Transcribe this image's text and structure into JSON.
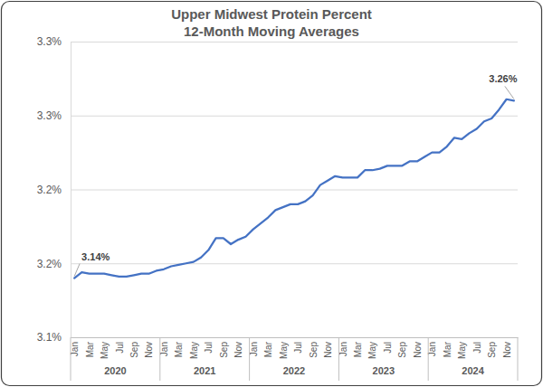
{
  "chart_data": {
    "type": "line",
    "title": "Upper Midwest Protein Percent",
    "subtitle": "12-Month Moving Averages",
    "categories": [
      "Jan",
      null,
      "Mar",
      null,
      "May",
      null,
      "Jul",
      null,
      "Sep",
      null,
      "Nov",
      null,
      "Jan",
      null,
      "Mar",
      null,
      "May",
      null,
      "Jul",
      null,
      "Sep",
      null,
      "Nov",
      null,
      "Jan",
      null,
      "Mar",
      null,
      "May",
      null,
      "Jul",
      null,
      "Sep",
      null,
      "Nov",
      null,
      "Jan",
      null,
      "Mar",
      null,
      "May",
      null,
      "Jul",
      null,
      "Sep",
      null,
      "Nov",
      null,
      "Jan",
      null,
      "Mar",
      null,
      "May",
      null,
      "Jul",
      null,
      "Sep",
      null,
      "Nov",
      null
    ],
    "x_groups": [
      "2020",
      "2021",
      "2022",
      "2023",
      "2024"
    ],
    "values": [
      3.14,
      3.144,
      3.143,
      3.143,
      3.143,
      3.142,
      3.141,
      3.141,
      3.142,
      3.143,
      3.143,
      3.145,
      3.146,
      3.148,
      3.149,
      3.15,
      3.151,
      3.154,
      3.159,
      3.167,
      3.167,
      3.163,
      3.166,
      3.168,
      3.173,
      3.177,
      3.181,
      3.186,
      3.188,
      3.19,
      3.19,
      3.192,
      3.196,
      3.203,
      3.206,
      3.209,
      3.208,
      3.208,
      3.208,
      3.213,
      3.213,
      3.214,
      3.216,
      3.216,
      3.216,
      3.219,
      3.219,
      3.222,
      3.225,
      3.225,
      3.229,
      3.235,
      3.234,
      3.238,
      3.241,
      3.246,
      3.248,
      3.254,
      3.261,
      3.26
    ],
    "value_labels": [
      "3.14%",
      null,
      null,
      null,
      null,
      null,
      null,
      null,
      null,
      null,
      null,
      null,
      null,
      null,
      null,
      null,
      null,
      null,
      null,
      null,
      null,
      null,
      null,
      null,
      null,
      null,
      null,
      null,
      null,
      null,
      null,
      null,
      null,
      null,
      null,
      null,
      null,
      null,
      null,
      null,
      null,
      null,
      null,
      null,
      null,
      null,
      null,
      null,
      null,
      null,
      null,
      null,
      null,
      null,
      null,
      null,
      null,
      null,
      null,
      "3.26%"
    ],
    "data_labels": true,
    "color": "#4472c4",
    "ylim": [
      3.1,
      3.3
    ],
    "yticks": [
      {
        "value": 3.1,
        "label": "3.1%"
      },
      {
        "value": 3.15,
        "label": "3.2%"
      },
      {
        "value": 3.2,
        "label": "3.2%"
      },
      {
        "value": 3.25,
        "label": "3.3%"
      },
      {
        "value": 3.3,
        "label": "3.3%"
      }
    ],
    "grid": true
  }
}
